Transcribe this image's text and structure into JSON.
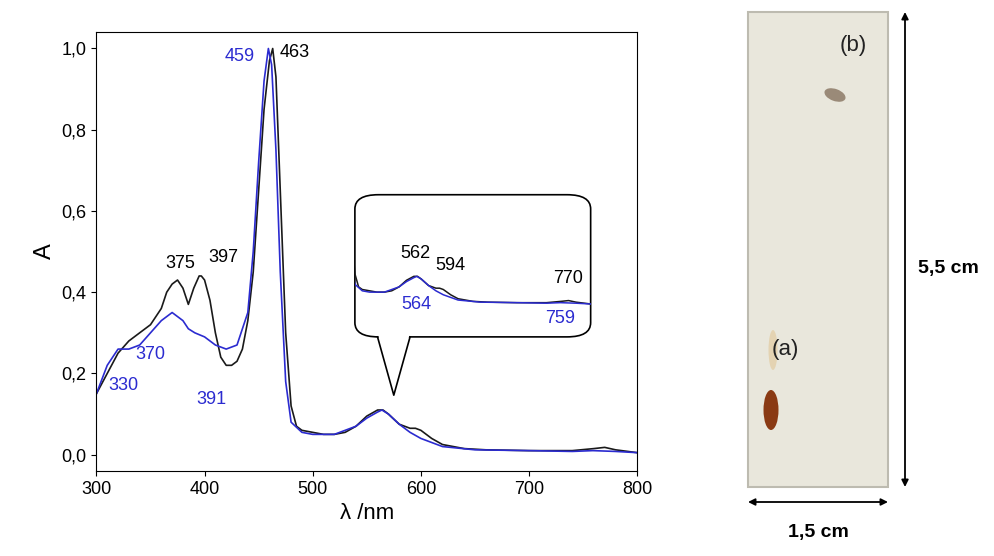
{
  "chart_data": {
    "type": "line",
    "x_label": "λ /nm",
    "y_label": "A",
    "xlim": [
      300,
      800
    ],
    "xticks": [
      300,
      400,
      500,
      600,
      700,
      800
    ],
    "ylim": [
      -0.04,
      1.04
    ],
    "yticks": [
      {
        "value": 0.0,
        "label": "0,0"
      },
      {
        "value": 0.2,
        "label": "0,2"
      },
      {
        "value": 0.4,
        "label": "0,4"
      },
      {
        "value": 0.6,
        "label": "0,6"
      },
      {
        "value": 0.8,
        "label": "0,8"
      },
      {
        "value": 1.0,
        "label": "1,0"
      }
    ],
    "series": [
      {
        "color": "#1a1a1a",
        "line_style": "solid",
        "x": [
          300,
          310,
          320,
          330,
          340,
          350,
          360,
          365,
          370,
          375,
          380,
          385,
          390,
          395,
          397,
          400,
          405,
          410,
          415,
          420,
          425,
          430,
          435,
          440,
          445,
          450,
          455,
          460,
          463,
          466,
          470,
          475,
          480,
          485,
          490,
          500,
          510,
          520,
          530,
          540,
          550,
          560,
          565,
          570,
          580,
          590,
          595,
          600,
          610,
          620,
          640,
          660,
          700,
          740,
          760,
          770,
          780,
          800
        ],
        "values": [
          0.15,
          0.2,
          0.25,
          0.28,
          0.3,
          0.32,
          0.36,
          0.4,
          0.42,
          0.43,
          0.41,
          0.37,
          0.41,
          0.44,
          0.44,
          0.43,
          0.38,
          0.3,
          0.24,
          0.22,
          0.22,
          0.23,
          0.26,
          0.33,
          0.45,
          0.65,
          0.85,
          0.97,
          1.0,
          0.93,
          0.65,
          0.3,
          0.12,
          0.07,
          0.06,
          0.055,
          0.05,
          0.05,
          0.055,
          0.07,
          0.095,
          0.11,
          0.11,
          0.1,
          0.075,
          0.065,
          0.065,
          0.06,
          0.04,
          0.025,
          0.015,
          0.012,
          0.01,
          0.01,
          0.015,
          0.018,
          0.012,
          0.005
        ]
      },
      {
        "color": "#2b2bd0",
        "line_style": "solid",
        "x": [
          300,
          310,
          320,
          330,
          340,
          350,
          360,
          370,
          380,
          385,
          391,
          400,
          410,
          420,
          430,
          440,
          445,
          450,
          455,
          459,
          462,
          466,
          470,
          475,
          480,
          490,
          500,
          520,
          540,
          550,
          560,
          564,
          570,
          580,
          590,
          600,
          620,
          650,
          700,
          740,
          759,
          780,
          800
        ],
        "values": [
          0.15,
          0.22,
          0.26,
          0.26,
          0.27,
          0.3,
          0.33,
          0.35,
          0.33,
          0.31,
          0.3,
          0.29,
          0.27,
          0.26,
          0.27,
          0.35,
          0.5,
          0.72,
          0.92,
          1.0,
          0.96,
          0.75,
          0.45,
          0.18,
          0.08,
          0.055,
          0.05,
          0.05,
          0.07,
          0.09,
          0.105,
          0.11,
          0.1,
          0.075,
          0.055,
          0.04,
          0.02,
          0.012,
          0.01,
          0.008,
          0.01,
          0.008,
          0.005
        ]
      }
    ],
    "annotations": [
      {
        "text": "375",
        "x": 375,
        "y": 0.43,
        "color": "#000000"
      },
      {
        "text": "397",
        "x": 397,
        "y": 0.44,
        "color": "#000000"
      },
      {
        "text": "463",
        "x": 463,
        "y": 1.0,
        "color": "#000000"
      },
      {
        "text": "459",
        "x": 459,
        "y": 1.0,
        "color": "#2b2bd0"
      },
      {
        "text": "370",
        "x": 370,
        "y": 0.35,
        "color": "#2b2bd0"
      },
      {
        "text": "330",
        "x": 330,
        "y": 0.26,
        "color": "#2b2bd0"
      },
      {
        "text": "391",
        "x": 391,
        "y": 0.3,
        "color": "#2b2bd0"
      }
    ],
    "inset": {
      "xlim": [
        480,
        800
      ],
      "ylim": [
        -0.12,
        0.42
      ],
      "tick_labels": false,
      "annotations": [
        {
          "text": "562",
          "x": 562,
          "y": 0.11,
          "color": "#000000"
        },
        {
          "text": "594",
          "x": 594,
          "y": 0.065,
          "color": "#000000"
        },
        {
          "text": "770",
          "x": 770,
          "y": 0.018,
          "color": "#000000"
        },
        {
          "text": "564",
          "x": 564,
          "y": 0.11,
          "color": "#2b2bd0"
        },
        {
          "text": "759",
          "x": 759,
          "y": 0.01,
          "color": "#2b2bd0"
        }
      ]
    }
  },
  "tlc_plate": {
    "spots": [
      {
        "label": "(a)"
      },
      {
        "label": "(b)"
      }
    ],
    "height_label": "5,5 cm",
    "width_label": "1,5 cm"
  }
}
